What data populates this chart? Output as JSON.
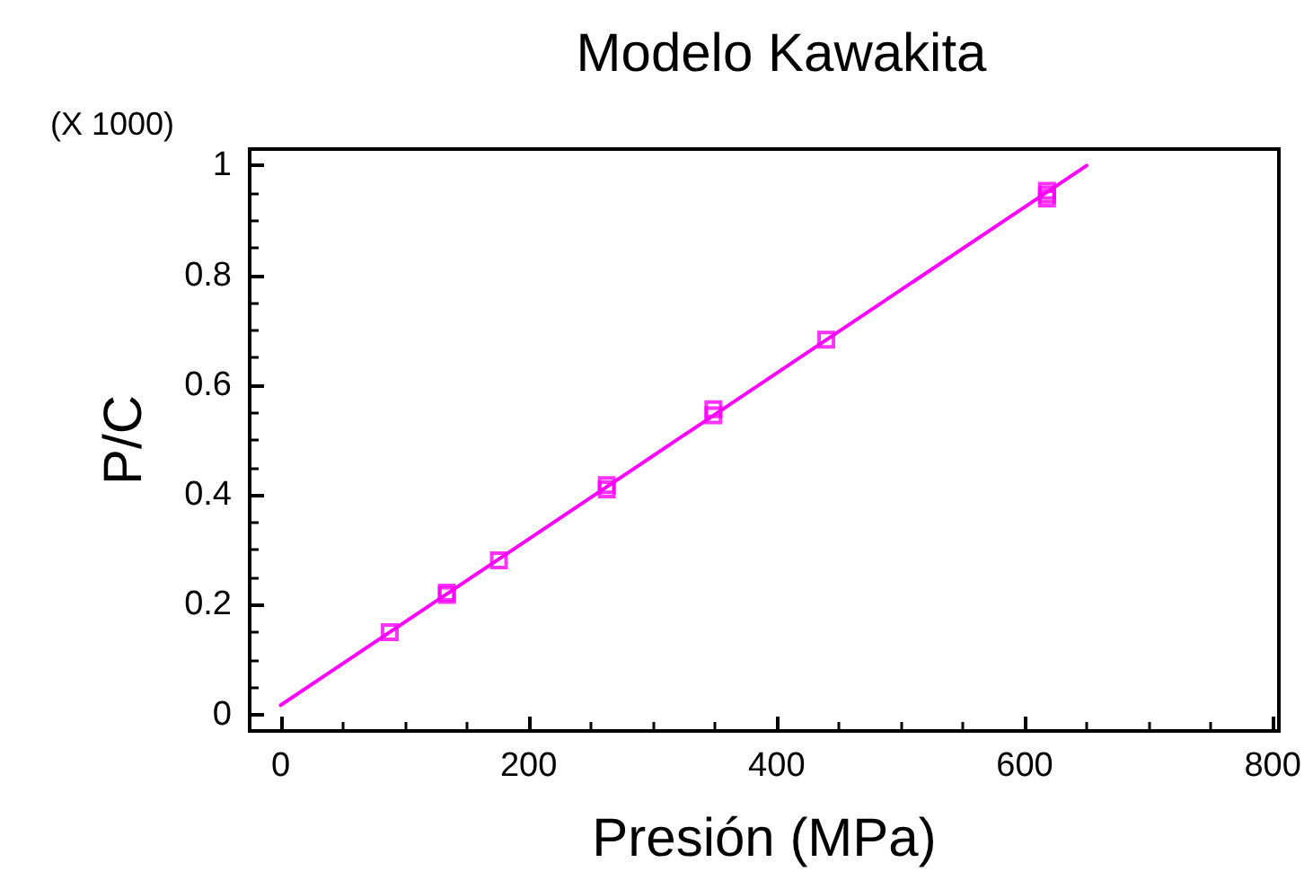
{
  "chart_data": {
    "type": "scatter",
    "title": "Modelo Kawakita",
    "xlabel": "Presión (MPa)",
    "ylabel": "P/C",
    "annotations": [
      "(X 1000)"
    ],
    "xlim": [
      -25,
      805
    ],
    "xticks": [
      0,
      200,
      400,
      600,
      800
    ],
    "ylim": [
      -0.03,
      1.03
    ],
    "yticks": [
      0,
      0.2,
      0.4,
      0.6,
      0.8,
      1
    ],
    "grid": false,
    "series": [
      {
        "marker": "square",
        "color": "#ff00ff",
        "x": [
          88,
          134,
          134,
          176,
          263,
          263,
          349,
          349,
          440,
          618,
          618,
          618
        ],
        "values": [
          0.15,
          0.222,
          0.218,
          0.281,
          0.418,
          0.41,
          0.556,
          0.545,
          0.683,
          0.954,
          0.947,
          0.94
        ]
      },
      {
        "type": "line",
        "marker": "none",
        "color": "#ff00ff",
        "x": [
          0,
          650
        ],
        "values": [
          0.017,
          1.0
        ]
      }
    ]
  }
}
